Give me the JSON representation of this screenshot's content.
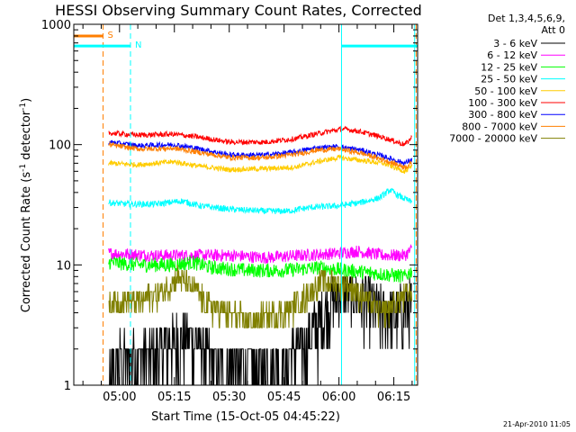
{
  "chart_data": {
    "type": "line",
    "title": "HESSI Observing Summary Count Rates, Corrected",
    "xlabel": "Start Time (15-Oct-05 04:45:22)",
    "ylabel_main": "Corrected Count Rate (s",
    "ylabel_sup1": "-1",
    "ylabel_mid": " detector",
    "ylabel_sup2": "-1",
    "ylabel_end": ")",
    "y_scale": "log",
    "ylim": [
      1,
      1000
    ],
    "y_ticks": [
      {
        "v": 1,
        "label": "1"
      },
      {
        "v": 10,
        "label": "10"
      },
      {
        "v": 100,
        "label": "100"
      },
      {
        "v": 1000,
        "label": "1000"
      }
    ],
    "xlim_minutes": [
      287.5,
      381.5
    ],
    "x_ticks": [
      {
        "v": 300,
        "label": "05:00"
      },
      {
        "v": 315,
        "label": "05:15"
      },
      {
        "v": 330,
        "label": "05:30"
      },
      {
        "v": 345,
        "label": "05:45"
      },
      {
        "v": 360,
        "label": "06:00"
      },
      {
        "v": 375,
        "label": "06:15"
      }
    ],
    "legend_header": [
      "Det 1,3,4,5,6,9,",
      "Att 0"
    ],
    "legend_placement": "top-right outside",
    "series": [
      {
        "name": "3 - 6 keV",
        "color": "#000000",
        "points": [
          [
            297,
            1
          ],
          [
            300,
            1.7
          ],
          [
            310,
            1.8
          ],
          [
            316,
            2.6
          ],
          [
            321,
            2.4
          ],
          [
            326,
            1.5
          ],
          [
            340,
            1.5
          ],
          [
            346,
            1.6
          ],
          [
            352,
            2.6
          ],
          [
            357,
            4.5
          ],
          [
            361,
            7
          ],
          [
            365,
            6
          ],
          [
            372,
            4
          ],
          [
            376,
            4
          ],
          [
            380,
            5
          ]
        ]
      },
      {
        "name": "6 - 12 keV",
        "color": "#ff00ff",
        "points": [
          [
            297,
            12.5
          ],
          [
            310,
            12
          ],
          [
            320,
            12
          ],
          [
            330,
            12
          ],
          [
            340,
            11.5
          ],
          [
            350,
            12
          ],
          [
            360,
            12.5
          ],
          [
            365,
            13
          ],
          [
            372,
            12
          ],
          [
            378,
            12
          ],
          [
            380,
            13.5
          ]
        ]
      },
      {
        "name": "12 - 25 keV",
        "color": "#00ff00",
        "points": [
          [
            297,
            10.5
          ],
          [
            305,
            10
          ],
          [
            315,
            10
          ],
          [
            320,
            10.5
          ],
          [
            325,
            9.5
          ],
          [
            335,
            9
          ],
          [
            345,
            9
          ],
          [
            355,
            9.5
          ],
          [
            362,
            9
          ],
          [
            370,
            8.5
          ],
          [
            378,
            8
          ],
          [
            380,
            9
          ]
        ]
      },
      {
        "name": "25 - 50 keV",
        "color": "#00ffff",
        "points": [
          [
            297,
            33
          ],
          [
            302,
            32
          ],
          [
            310,
            32
          ],
          [
            317,
            34
          ],
          [
            322,
            31
          ],
          [
            330,
            29
          ],
          [
            340,
            28
          ],
          [
            346,
            28
          ],
          [
            352,
            30
          ],
          [
            360,
            31
          ],
          [
            366,
            33
          ],
          [
            371,
            36
          ],
          [
            374,
            42
          ],
          [
            376,
            38
          ],
          [
            380,
            33
          ]
        ]
      },
      {
        "name": "50 - 100 keV",
        "color": "#ffcc00",
        "points": [
          [
            297,
            70
          ],
          [
            305,
            68
          ],
          [
            315,
            72
          ],
          [
            322,
            66
          ],
          [
            330,
            62
          ],
          [
            340,
            63
          ],
          [
            348,
            65
          ],
          [
            354,
            72
          ],
          [
            360,
            78
          ],
          [
            366,
            74
          ],
          [
            372,
            70
          ],
          [
            378,
            60
          ],
          [
            380,
            65
          ]
        ]
      },
      {
        "name": "100 - 300 keV",
        "color": "#ff0000",
        "points": [
          [
            297,
            125
          ],
          [
            305,
            120
          ],
          [
            315,
            122
          ],
          [
            322,
            115
          ],
          [
            330,
            105
          ],
          [
            340,
            105
          ],
          [
            348,
            112
          ],
          [
            355,
            125
          ],
          [
            361,
            135
          ],
          [
            365,
            130
          ],
          [
            372,
            115
          ],
          [
            378,
            100
          ],
          [
            380,
            115
          ]
        ]
      },
      {
        "name": "300 - 800 keV",
        "color": "#0000ff",
        "points": [
          [
            297,
            105
          ],
          [
            305,
            98
          ],
          [
            315,
            100
          ],
          [
            322,
            92
          ],
          [
            330,
            82
          ],
          [
            340,
            82
          ],
          [
            348,
            87
          ],
          [
            354,
            94
          ],
          [
            360,
            96
          ],
          [
            366,
            90
          ],
          [
            372,
            80
          ],
          [
            378,
            70
          ],
          [
            380,
            75
          ]
        ]
      },
      {
        "name": "800 - 7000 keV",
        "color": "#ff7f00",
        "points": [
          [
            297,
            100
          ],
          [
            305,
            92
          ],
          [
            315,
            93
          ],
          [
            322,
            86
          ],
          [
            330,
            78
          ],
          [
            340,
            78
          ],
          [
            348,
            83
          ],
          [
            354,
            90
          ],
          [
            360,
            92
          ],
          [
            366,
            85
          ],
          [
            372,
            75
          ],
          [
            378,
            65
          ],
          [
            380,
            70
          ]
        ]
      },
      {
        "name": "7000 - 20000 keV",
        "color": "#808000",
        "points": [
          [
            297,
            5
          ],
          [
            305,
            5
          ],
          [
            312,
            6
          ],
          [
            316,
            8
          ],
          [
            320,
            6.5
          ],
          [
            325,
            4.5
          ],
          [
            335,
            3.5
          ],
          [
            345,
            4
          ],
          [
            352,
            6
          ],
          [
            356,
            7.5
          ],
          [
            362,
            7
          ],
          [
            368,
            5
          ],
          [
            372,
            4
          ],
          [
            378,
            5.5
          ],
          [
            380,
            6
          ]
        ]
      }
    ],
    "markers": [
      {
        "label": "S",
        "color": "#ff7f00",
        "x": 295.5,
        "bar_x": [
          287.5,
          295.5
        ],
        "bar_y": 800
      },
      {
        "label": "N",
        "color": "#00ffff",
        "x": 303,
        "bar_x": [
          287.5,
          303
        ],
        "bar_y": 660
      }
    ],
    "vertical_lines": [
      {
        "x": 360.7,
        "color": "#00ffff"
      },
      {
        "x": 380.7,
        "color": "#00ffff"
      },
      {
        "x": 381.1,
        "color": "#ff7f00",
        "dashed": true
      }
    ],
    "extra_bar": {
      "color": "#00ffff",
      "x": [
        360.7,
        381.5
      ],
      "y": 660
    }
  },
  "footer_timestamp": "21-Apr-2010 11:05"
}
